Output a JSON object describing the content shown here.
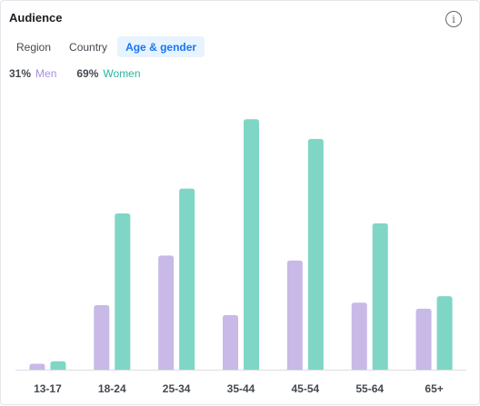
{
  "card": {
    "title": "Audience",
    "info_icon": "info-icon"
  },
  "tabs": [
    {
      "label": "Region",
      "active": false
    },
    {
      "label": "Country",
      "active": false
    },
    {
      "label": "Age & gender",
      "active": true
    }
  ],
  "legend": {
    "men": {
      "percent": "31%",
      "label": "Men"
    },
    "women": {
      "percent": "69%",
      "label": "Women"
    }
  },
  "colors": {
    "men": "#c8b9e6",
    "women": "#7fd6c4",
    "accent": "#1877f2",
    "tab_active_bg": "#e7f3ff"
  },
  "chart_data": {
    "type": "bar",
    "categories": [
      "13-17",
      "18-24",
      "25-34",
      "35-44",
      "45-54",
      "55-64",
      "65+"
    ],
    "series": [
      {
        "name": "Men",
        "values": [
          1.2,
          13,
          23,
          11,
          22,
          13.5,
          12.3
        ]
      },
      {
        "name": "Women",
        "values": [
          1.7,
          31.5,
          36.5,
          50.5,
          46.5,
          29.5,
          14.8
        ]
      }
    ],
    "ylim": [
      0,
      52
    ]
  }
}
